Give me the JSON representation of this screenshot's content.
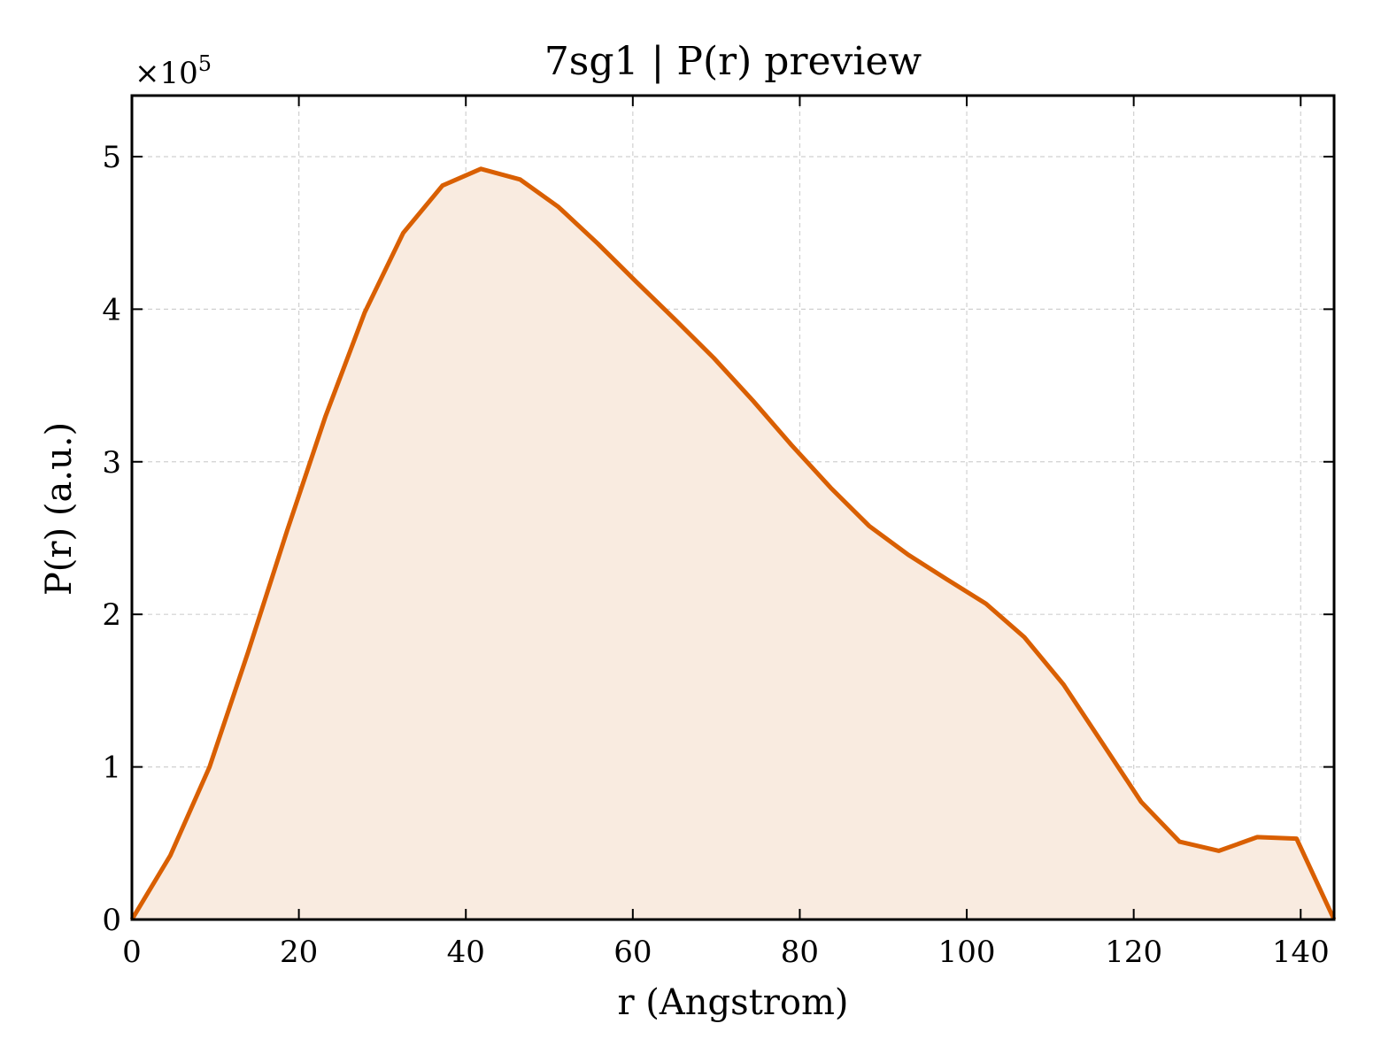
{
  "chart_data": {
    "type": "area",
    "title": "7sg1 | P(r) preview",
    "xlabel": "r (Angstrom)",
    "ylabel": "P(r) (a.u.)",
    "y_multiplier_label": "×10",
    "y_multiplier_exponent": "5",
    "xlim": [
      0,
      144
    ],
    "ylim": [
      0,
      5.4
    ],
    "x_ticks": [
      0,
      20,
      40,
      60,
      80,
      100,
      120,
      140
    ],
    "y_ticks": [
      0,
      1,
      2,
      3,
      4,
      5
    ],
    "grid": true,
    "line_color": "#d95f02",
    "fill_color": "#f9ebe0",
    "series": [
      {
        "x": [
          0,
          4.6,
          9.3,
          13.9,
          18.6,
          23.2,
          27.9,
          32.5,
          37.2,
          41.8,
          46.5,
          51.1,
          55.8,
          60.4,
          65.1,
          69.7,
          74.4,
          79.0,
          83.7,
          88.3,
          93.0,
          97.6,
          102.3,
          106.9,
          111.6,
          116.2,
          120.9,
          125.5,
          130.2,
          134.8,
          139.5,
          144.0
        ],
        "y": [
          0,
          0.42,
          1.0,
          1.75,
          2.55,
          3.3,
          3.98,
          4.5,
          4.81,
          4.92,
          4.85,
          4.67,
          4.43,
          4.18,
          3.93,
          3.68,
          3.4,
          3.11,
          2.83,
          2.58,
          2.39,
          2.23,
          2.07,
          1.85,
          1.54,
          1.16,
          0.77,
          0.51,
          0.45,
          0.54,
          0.53,
          0.0
        ]
      }
    ]
  }
}
